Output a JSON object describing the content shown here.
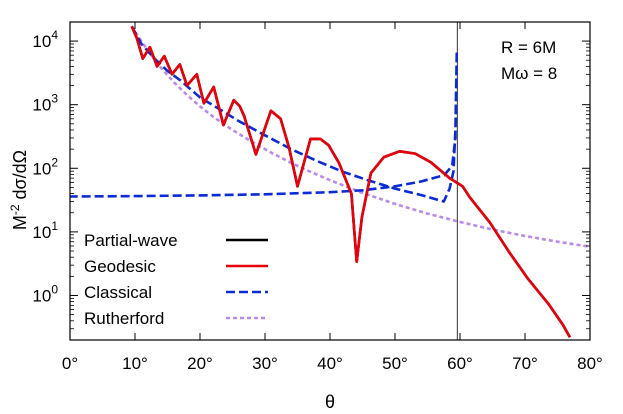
{
  "chart_data": {
    "type": "line",
    "xlabel": "θ",
    "ylabel_parts": {
      "base": "M",
      "exp": "-2",
      "rest": " dσ/dΩ"
    },
    "x_range": [
      0,
      80
    ],
    "y_range_log10": [
      -0.7,
      4.3
    ],
    "y_scale": "log",
    "x_ticks": [
      {
        "value": 0,
        "label": "0°"
      },
      {
        "value": 10,
        "label": "10°"
      },
      {
        "value": 20,
        "label": "20°"
      },
      {
        "value": 30,
        "label": "30°"
      },
      {
        "value": 40,
        "label": "40°"
      },
      {
        "value": 50,
        "label": "50°"
      },
      {
        "value": 60,
        "label": "60°"
      },
      {
        "value": 70,
        "label": "70°"
      },
      {
        "value": 80,
        "label": "80°"
      }
    ],
    "y_ticks": [
      {
        "exp": 0,
        "base": "10",
        "sup": "0"
      },
      {
        "exp": 1,
        "base": "10",
        "sup": "1"
      },
      {
        "exp": 2,
        "base": "10",
        "sup": "2"
      },
      {
        "exp": 3,
        "base": "10",
        "sup": "3"
      },
      {
        "exp": 4,
        "base": "10",
        "sup": "4"
      }
    ],
    "annotations": [
      "R = 6M",
      "Mω = 8"
    ],
    "vertical_line_x": 59.6,
    "legend_position": "bottom-left",
    "series": [
      {
        "name": "Partial-wave",
        "color": "#000000",
        "style": "solid",
        "points": [
          [
            9.5,
            17000
          ],
          [
            10.3,
            11000
          ],
          [
            11.2,
            5300
          ],
          [
            12.3,
            8000
          ],
          [
            13.4,
            4000
          ],
          [
            14.5,
            5800
          ],
          [
            15.7,
            3000
          ],
          [
            16.9,
            4300
          ],
          [
            18.0,
            2000
          ],
          [
            19.5,
            3000
          ],
          [
            20.6,
            1050
          ],
          [
            22.1,
            1900
          ],
          [
            23.6,
            480
          ],
          [
            25.2,
            1180
          ],
          [
            26.1,
            950
          ],
          [
            26.8,
            660
          ],
          [
            28.6,
            165
          ],
          [
            30.9,
            800
          ],
          [
            32.4,
            600
          ],
          [
            33.7,
            210
          ],
          [
            35.0,
            52
          ],
          [
            37.0,
            290
          ],
          [
            38.5,
            290
          ],
          [
            39.8,
            230
          ],
          [
            41.4,
            120
          ],
          [
            43.3,
            40
          ],
          [
            44.1,
            3.4
          ],
          [
            44.9,
            17
          ],
          [
            46.3,
            84
          ],
          [
            48.3,
            150
          ],
          [
            50.7,
            185
          ],
          [
            53.1,
            170
          ],
          [
            55.5,
            124
          ],
          [
            58.4,
            70
          ],
          [
            60.4,
            52
          ],
          [
            61.5,
            35
          ],
          [
            64.6,
            14
          ],
          [
            67.5,
            4.9
          ],
          [
            70.5,
            1.8
          ],
          [
            73.6,
            0.74
          ],
          [
            75.8,
            0.35
          ],
          [
            76.9,
            0.22
          ]
        ]
      },
      {
        "name": "Geodesic",
        "color": "#e8000b",
        "style": "solid",
        "points": [
          [
            9.5,
            17000
          ],
          [
            10.3,
            11000
          ],
          [
            11.2,
            5300
          ],
          [
            12.3,
            8000
          ],
          [
            13.4,
            4000
          ],
          [
            14.5,
            5800
          ],
          [
            15.7,
            3000
          ],
          [
            16.9,
            4300
          ],
          [
            18.0,
            2000
          ],
          [
            19.5,
            3000
          ],
          [
            20.6,
            1050
          ],
          [
            22.1,
            1900
          ],
          [
            23.6,
            480
          ],
          [
            25.2,
            1180
          ],
          [
            26.1,
            950
          ],
          [
            26.8,
            660
          ],
          [
            28.6,
            165
          ],
          [
            30.9,
            800
          ],
          [
            32.4,
            600
          ],
          [
            33.7,
            210
          ],
          [
            35.0,
            52
          ],
          [
            37.0,
            290
          ],
          [
            38.5,
            290
          ],
          [
            39.8,
            230
          ],
          [
            41.4,
            120
          ],
          [
            43.3,
            40
          ],
          [
            44.1,
            3.4
          ],
          [
            44.9,
            17
          ],
          [
            46.3,
            84
          ],
          [
            48.3,
            150
          ],
          [
            50.7,
            185
          ],
          [
            53.1,
            170
          ],
          [
            55.5,
            124
          ],
          [
            58.4,
            70
          ],
          [
            60.4,
            52
          ],
          [
            61.5,
            35
          ],
          [
            64.6,
            14
          ],
          [
            67.5,
            4.9
          ],
          [
            70.5,
            1.8
          ],
          [
            73.6,
            0.74
          ],
          [
            75.8,
            0.35
          ],
          [
            76.9,
            0.22
          ]
        ]
      },
      {
        "name": "Classical",
        "color": "#0a2bd6",
        "style": "dashed",
        "points": [
          [
            9.5,
            17000
          ],
          [
            11.0,
            9000
          ],
          [
            13.0,
            5300
          ],
          [
            15.0,
            3400
          ],
          [
            17.0,
            2400
          ],
          [
            20.0,
            1300
          ],
          [
            23.0,
            850
          ],
          [
            26.0,
            550
          ],
          [
            30.0,
            330
          ],
          [
            34.0,
            200
          ],
          [
            38.0,
            130
          ],
          [
            42.0,
            88
          ],
          [
            46.0,
            64
          ],
          [
            50.0,
            48
          ],
          [
            54.0,
            38
          ],
          [
            57.5,
            30
          ],
          [
            58.4,
            48
          ],
          [
            59.0,
            90
          ],
          [
            59.3,
            400
          ],
          [
            59.5,
            7000
          ],
          [
            59.3,
            300
          ],
          [
            58.8,
            110
          ],
          [
            57.6,
            78
          ],
          [
            54.0,
            62
          ],
          [
            50.0,
            52
          ],
          [
            45.0,
            45
          ],
          [
            40.0,
            42
          ],
          [
            30.0,
            39
          ],
          [
            20.0,
            37.5
          ],
          [
            10.0,
            36.5
          ],
          [
            0.0,
            36
          ]
        ]
      },
      {
        "name": "Rutherford",
        "color": "#b98be6",
        "style": "dotted",
        "points": [
          [
            9.5,
            17000
          ],
          [
            10.0,
            14000
          ],
          [
            12.0,
            7000
          ],
          [
            14.0,
            3800
          ],
          [
            16.0,
            2250
          ],
          [
            18.0,
            1420
          ],
          [
            20.0,
            940
          ],
          [
            22.0,
            650
          ],
          [
            25.0,
            400
          ],
          [
            28.0,
            260
          ],
          [
            31.0,
            175
          ],
          [
            34.0,
            122
          ],
          [
            37.0,
            88
          ],
          [
            40.0,
            65
          ],
          [
            45.0,
            41
          ],
          [
            50.0,
            27.5
          ],
          [
            55.0,
            19.4
          ],
          [
            60.0,
            14.3
          ],
          [
            65.0,
            10.9
          ],
          [
            70.0,
            8.6
          ],
          [
            75.0,
            7.0
          ],
          [
            80.0,
            5.85
          ]
        ]
      }
    ]
  }
}
